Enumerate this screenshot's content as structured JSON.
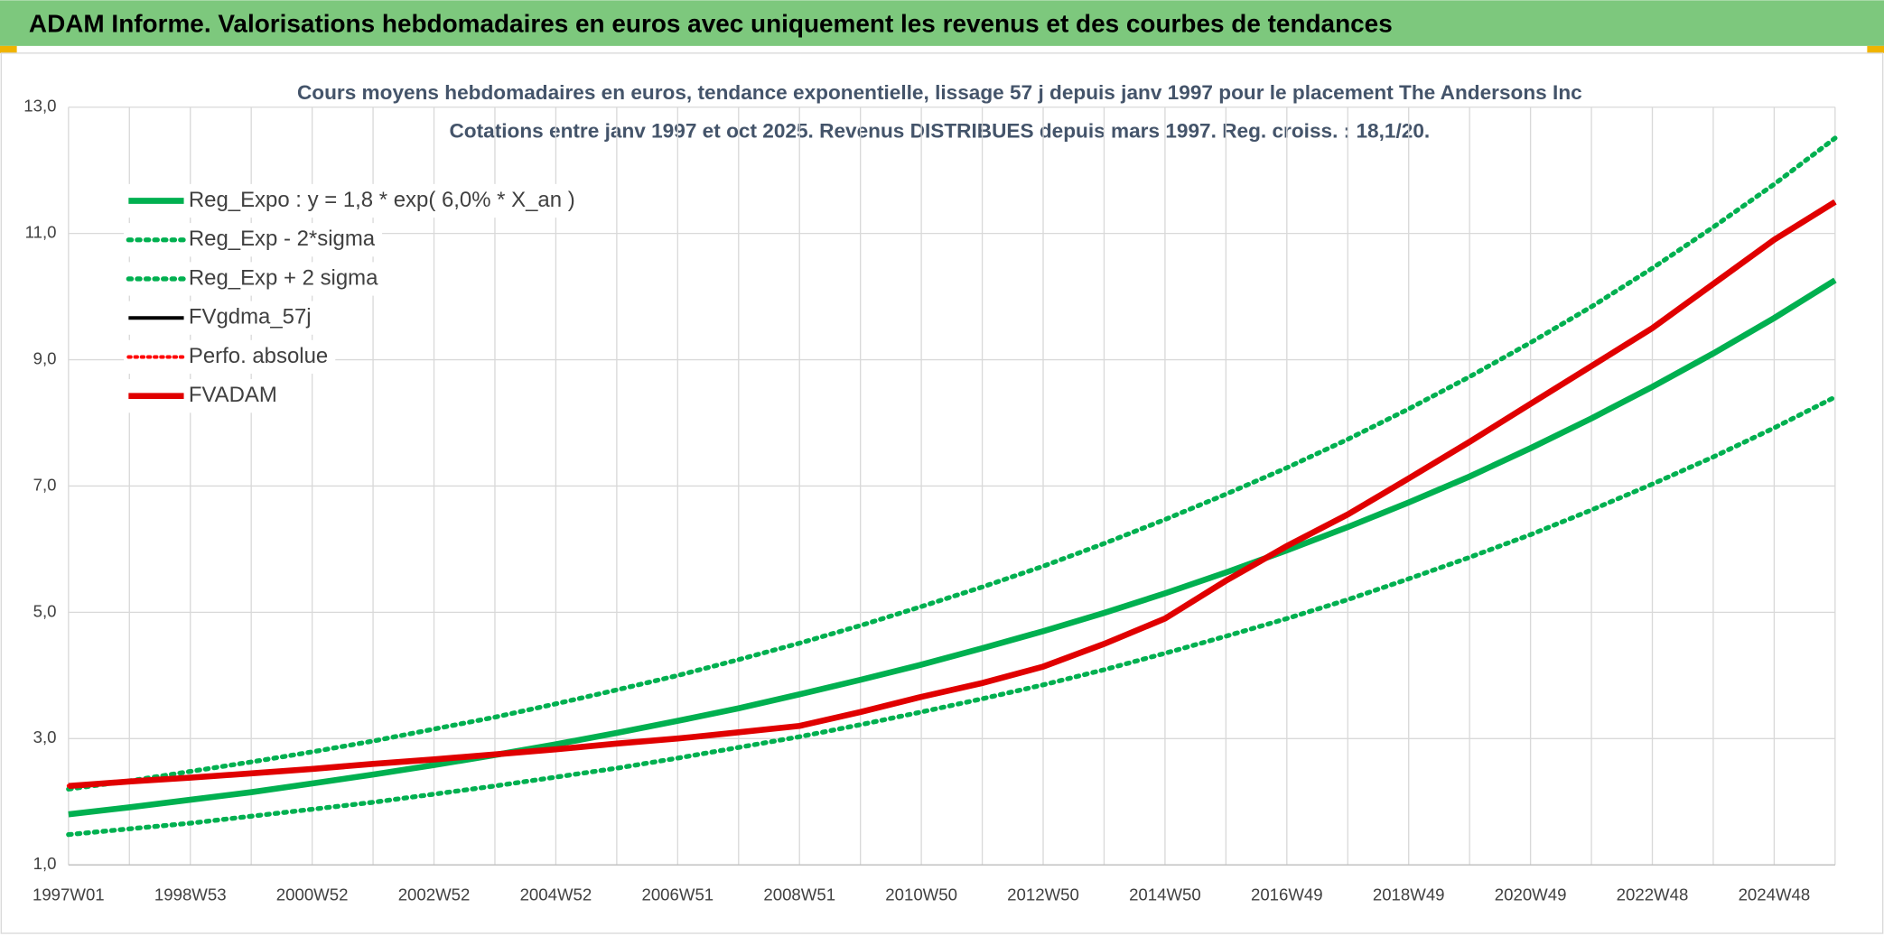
{
  "chart_data": {
    "type": "line",
    "header": "ADAM Informe. Valorisations hebdomadaires en euros avec uniquement les revenus et des courbes de tendances",
    "title": "Cours moyens hebdomadaires en euros, tendance exponentielle, lissage 57 j depuis janv 1997 pour le placement The Andersons Inc",
    "subtitle": "Cotations entre janv 1997 et oct 2025. Revenus DISTRIBUES depuis mars 1997. Reg. croiss. : 18,1/20.",
    "categories": [
      "1997W01",
      null,
      "1998W53",
      null,
      "2000W52",
      null,
      "2002W52",
      null,
      "2004W52",
      null,
      "2006W51",
      null,
      "2008W51",
      null,
      "2010W50",
      null,
      "2012W50",
      null,
      "2014W50",
      null,
      "2016W49",
      null,
      "2018W49",
      null,
      "2020W49",
      null,
      "2022W48",
      null,
      "2024W48",
      null
    ],
    "ylim": [
      1,
      13
    ],
    "yticks": [
      {
        "value": 1,
        "label": "1,0"
      },
      {
        "value": 3,
        "label": "3,0"
      },
      {
        "value": 5,
        "label": "5,0"
      },
      {
        "value": 7,
        "label": "7,0"
      },
      {
        "value": 9,
        "label": "9,0"
      },
      {
        "value": 11,
        "label": "11,0"
      },
      {
        "value": 13,
        "label": "13,0"
      }
    ],
    "grid": true,
    "legend": "top-left",
    "series": [
      {
        "name": "Reg_Expo : y = 1,8 * exp( 6,0% *  X_an )",
        "color": "#00b050",
        "width": 5,
        "dash": "solid",
        "values": [
          1.8,
          1.91,
          2.03,
          2.15,
          2.29,
          2.43,
          2.58,
          2.74,
          2.91,
          3.09,
          3.28,
          3.48,
          3.7,
          3.93,
          4.17,
          4.43,
          4.7,
          4.99,
          5.3,
          5.63,
          5.98,
          6.35,
          6.74,
          7.15,
          7.6,
          8.07,
          8.57,
          9.1,
          9.66,
          10.26
        ]
      },
      {
        "name": "Reg_Exp - 2*sigma",
        "color": "#00b050",
        "width": 4,
        "dash": "dotted",
        "values": [
          1.48,
          1.57,
          1.66,
          1.77,
          1.88,
          1.99,
          2.12,
          2.25,
          2.39,
          2.53,
          2.69,
          2.86,
          3.03,
          3.22,
          3.42,
          3.63,
          3.85,
          4.09,
          4.35,
          4.62,
          4.9,
          5.2,
          5.53,
          5.87,
          6.23,
          6.62,
          7.03,
          7.46,
          7.92,
          8.41
        ]
      },
      {
        "name": "Reg_Exp + 2 sigma",
        "color": "#00b050",
        "width": 4,
        "dash": "dotted",
        "values": [
          2.2,
          2.33,
          2.48,
          2.63,
          2.79,
          2.96,
          3.15,
          3.34,
          3.55,
          3.77,
          4.0,
          4.25,
          4.51,
          4.79,
          5.09,
          5.4,
          5.73,
          6.09,
          6.47,
          6.87,
          7.29,
          7.74,
          8.22,
          8.73,
          9.27,
          9.84,
          10.45,
          11.1,
          11.78,
          12.51
        ]
      },
      {
        "name": "FVgdma_57j",
        "color": "#000000",
        "width": 3,
        "dash": "solid",
        "values": [
          2.25,
          2.32,
          2.38,
          2.45,
          2.52,
          2.6,
          2.67,
          2.75,
          2.83,
          2.92,
          3.0,
          3.1,
          3.2,
          3.42,
          3.66,
          3.88,
          4.14,
          4.5,
          4.9,
          5.5,
          6.05,
          6.55,
          7.12,
          7.7,
          8.3,
          8.9,
          9.5,
          10.2,
          10.9,
          11.5
        ]
      },
      {
        "name": "Perfo. absolue",
        "color": "#ff0000",
        "width": 3,
        "dash": "dotted",
        "values": [
          2.25,
          2.32,
          2.38,
          2.45,
          2.52,
          2.6,
          2.67,
          2.75,
          2.83,
          2.92,
          3.0,
          3.1,
          3.2,
          3.42,
          3.66,
          3.88,
          4.14,
          4.5,
          4.9,
          5.5,
          6.05,
          6.55,
          7.12,
          7.7,
          8.3,
          8.9,
          9.5,
          10.2,
          10.9,
          11.5
        ]
      },
      {
        "name": "FVADAM",
        "color": "#e00000",
        "width": 5,
        "dash": "solid",
        "values": [
          2.25,
          2.32,
          2.38,
          2.45,
          2.52,
          2.6,
          2.67,
          2.75,
          2.83,
          2.92,
          3.0,
          3.1,
          3.2,
          3.42,
          3.66,
          3.88,
          4.14,
          4.5,
          4.9,
          5.5,
          6.05,
          6.55,
          7.12,
          7.7,
          8.3,
          8.9,
          9.5,
          10.2,
          10.9,
          11.5
        ]
      }
    ]
  }
}
